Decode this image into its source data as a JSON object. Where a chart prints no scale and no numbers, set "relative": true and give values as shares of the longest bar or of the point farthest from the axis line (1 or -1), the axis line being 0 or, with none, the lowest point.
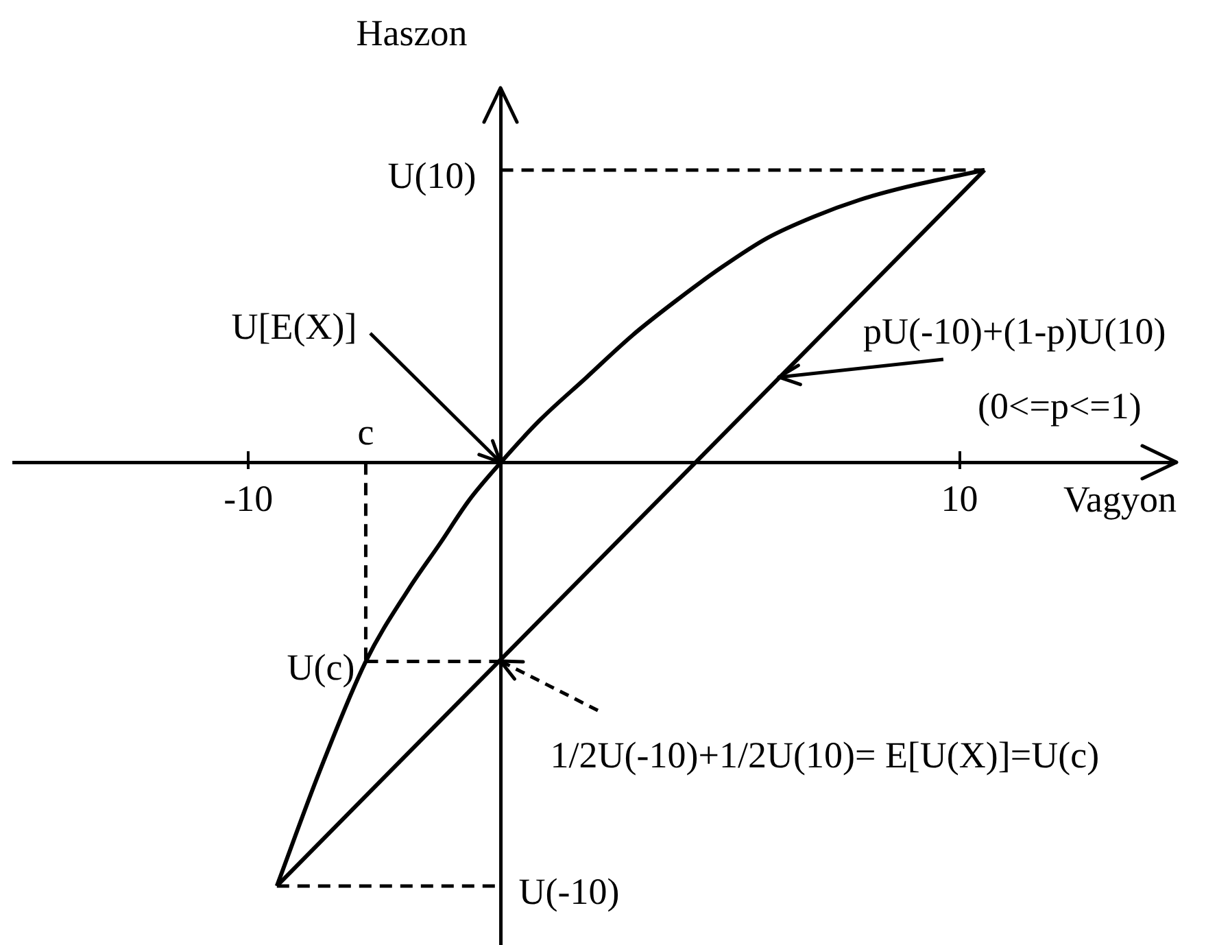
{
  "chart_data": {
    "type": "line",
    "xlabel": "Vagyon",
    "ylabel": "Haszon",
    "relative": true,
    "xlim": [
      -16.6,
      16.1
    ],
    "xticks": [
      -10,
      10
    ],
    "marker": "none",
    "legend": false,
    "grid": false,
    "series": [
      {
        "color": "#000000",
        "line_style": "solid",
        "x": [
          -9.2,
          -8,
          -6.7,
          -5.5,
          -4.6,
          -3.8,
          -2.9,
          -1.8,
          -0.5,
          0.8,
          2,
          3.3,
          4.6,
          5.9,
          7.2,
          8.5,
          10.7
        ],
        "values": [
          -1,
          -0.73,
          -0.47,
          -0.3,
          -0.19,
          -0.09,
          0,
          0.1,
          0.2,
          0.3,
          0.38,
          0.46,
          0.53,
          0.58,
          0.62,
          0.65,
          0.69
        ]
      },
      {
        "color": "#000000",
        "line_style": "solid",
        "x": [
          -9.2,
          10.7
        ],
        "values": [
          -1,
          0.69
        ]
      },
      {
        "color": "#000000",
        "line_style": "dashed",
        "x": [
          -2.9,
          10.7
        ],
        "values": [
          0.69,
          0.69
        ]
      },
      {
        "color": "#000000",
        "line_style": "dashed",
        "x": [
          -6.7,
          -6.7
        ],
        "values": [
          0,
          -0.47
        ]
      },
      {
        "color": "#000000",
        "line_style": "dashed",
        "x": [
          -6.7,
          -2.9
        ],
        "values": [
          -0.47,
          -0.47
        ]
      },
      {
        "color": "#000000",
        "line_style": "dashed",
        "x": [
          -9.2,
          -2.9
        ],
        "values": [
          -1,
          -1
        ]
      }
    ],
    "ref_lines": [
      {
        "axis": "x",
        "value": -2.9,
        "color": "#000000",
        "line_style": "solid"
      }
    ],
    "annotations": [
      {
        "text": "U(10)",
        "x": -2.9,
        "y": 0.69
      },
      {
        "text": "U[E(X)]",
        "x": -2.9,
        "y": 0
      },
      {
        "text": "c",
        "x": -6.7,
        "y": 0
      },
      {
        "text": "pU(-10)+(1-p)U(10)",
        "x": 4.9,
        "y": 0.2
      },
      "(0<=p<=1)",
      {
        "text": "U(c)",
        "x": -6.7,
        "y": -0.47
      },
      {
        "text": "1/2U(-10)+1/2U(10)= E[U(X)]=U(c)",
        "x": -2.9,
        "y": -0.47
      },
      {
        "text": "U(-10)",
        "x": -2.9,
        "y": -1
      }
    ]
  }
}
